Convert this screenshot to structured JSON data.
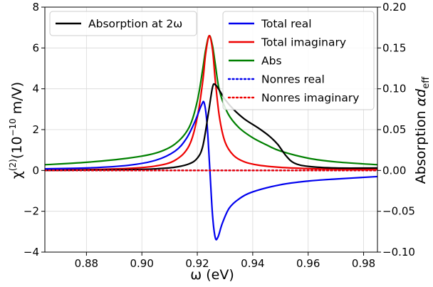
{
  "chart_data": {
    "type": "line",
    "xlabel": "ω (eV)",
    "ylabel_left_parts": [
      "χ",
      "(2)",
      "(10",
      "−10",
      " m/V)"
    ],
    "ylabel_right_parts": [
      "Absorption ",
      "αd",
      "eff"
    ],
    "xlim": [
      0.865,
      0.985
    ],
    "ylim_left": [
      -4,
      8
    ],
    "ylim_right": [
      -0.1,
      0.2
    ],
    "x_ticks": [
      0.88,
      0.9,
      0.92,
      0.94,
      0.96,
      0.98
    ],
    "x_tick_labels": [
      "0.88",
      "0.90",
      "0.92",
      "0.94",
      "0.96",
      "0.98"
    ],
    "y_left_ticks": [
      -4,
      -2,
      0,
      2,
      4,
      6,
      8
    ],
    "y_left_tick_labels": [
      "−4",
      "−2",
      "0",
      "2",
      "4",
      "6",
      "8"
    ],
    "y_right_ticks": [
      -0.1,
      -0.05,
      0.0,
      0.05,
      0.1,
      0.15,
      0.2
    ],
    "y_right_tick_labels": [
      "−0.10",
      "−0.05",
      "0.00",
      "0.05",
      "0.10",
      "0.15",
      "0.20"
    ],
    "grid": true,
    "legend_left": {
      "placement": "top-left",
      "entries": [
        {
          "label": "Absorption at 2ω",
          "color": "#000000",
          "style": "solid"
        }
      ]
    },
    "legend_right": {
      "placement": "top-right",
      "entries": [
        {
          "label": "Total real",
          "color": "#0000ee",
          "style": "solid"
        },
        {
          "label": "Total imaginary",
          "color": "#ee0000",
          "style": "solid"
        },
        {
          "label": "Abs",
          "color": "#008000",
          "style": "solid"
        },
        {
          "label": "Nonres real",
          "color": "#0000ee",
          "style": "dotted"
        },
        {
          "label": "Nonres imaginary",
          "color": "#ee0000",
          "style": "dotted"
        }
      ]
    },
    "series": [
      {
        "name": "Total real",
        "axis": "left",
        "color": "#0000ee",
        "style": "solid",
        "x": [
          0.865,
          0.88,
          0.895,
          0.905,
          0.912,
          0.916,
          0.919,
          0.9215,
          0.9225,
          0.9235,
          0.9245,
          0.9255,
          0.9265,
          0.9275,
          0.929,
          0.9315,
          0.935,
          0.94,
          0.95,
          0.96,
          0.97,
          0.985
        ],
        "y": [
          0.08,
          0.12,
          0.25,
          0.5,
          0.95,
          1.55,
          2.35,
          3.2,
          3.3,
          2.3,
          0.1,
          -2.2,
          -3.3,
          -3.25,
          -2.6,
          -1.85,
          -1.4,
          -1.05,
          -0.7,
          -0.52,
          -0.42,
          -0.3
        ]
      },
      {
        "name": "Total imaginary",
        "axis": "left",
        "color": "#ee0000",
        "style": "solid",
        "x": [
          0.865,
          0.88,
          0.895,
          0.905,
          0.912,
          0.917,
          0.92,
          0.922,
          0.923,
          0.9243,
          0.9255,
          0.9265,
          0.928,
          0.93,
          0.933,
          0.937,
          0.942,
          0.95,
          0.96,
          0.97,
          0.985
        ],
        "y": [
          0.02,
          0.04,
          0.1,
          0.22,
          0.5,
          1.2,
          2.6,
          4.4,
          5.7,
          6.6,
          5.9,
          4.4,
          2.6,
          1.4,
          0.75,
          0.42,
          0.26,
          0.15,
          0.09,
          0.06,
          0.04
        ]
      },
      {
        "name": "Abs",
        "axis": "left",
        "color": "#008000",
        "style": "solid",
        "x": [
          0.865,
          0.88,
          0.895,
          0.905,
          0.912,
          0.917,
          0.92,
          0.922,
          0.923,
          0.9243,
          0.9255,
          0.9265,
          0.928,
          0.931,
          0.935,
          0.94,
          0.945,
          0.95,
          0.96,
          0.97,
          0.985
        ],
        "y": [
          0.28,
          0.4,
          0.6,
          0.85,
          1.3,
          2.1,
          3.4,
          5.0,
          5.9,
          6.6,
          6.1,
          5.2,
          3.9,
          2.8,
          2.1,
          1.6,
          1.25,
          0.95,
          0.6,
          0.42,
          0.28
        ]
      },
      {
        "name": "Nonres real",
        "axis": "left",
        "color": "#0000ee",
        "style": "dotted",
        "x": [
          0.865,
          0.985
        ],
        "y": [
          0.0,
          0.0
        ]
      },
      {
        "name": "Nonres imaginary",
        "axis": "left",
        "color": "#ee0000",
        "style": "dotted",
        "x": [
          0.865,
          0.985
        ],
        "y": [
          0.0,
          0.0
        ]
      },
      {
        "name": "Absorption at 2ω",
        "axis": "right",
        "color": "#000000",
        "style": "solid",
        "x": [
          0.865,
          0.88,
          0.895,
          0.905,
          0.912,
          0.917,
          0.92,
          0.922,
          0.924,
          0.9255,
          0.9265,
          0.928,
          0.93,
          0.933,
          0.937,
          0.942,
          0.946,
          0.949,
          0.952,
          0.955,
          0.96,
          0.97,
          0.985
        ],
        "y": [
          0.0,
          0.0005,
          0.001,
          0.002,
          0.004,
          0.008,
          0.015,
          0.03,
          0.07,
          0.102,
          0.105,
          0.098,
          0.087,
          0.075,
          0.063,
          0.052,
          0.042,
          0.032,
          0.018,
          0.009,
          0.005,
          0.003,
          0.003
        ]
      }
    ]
  }
}
